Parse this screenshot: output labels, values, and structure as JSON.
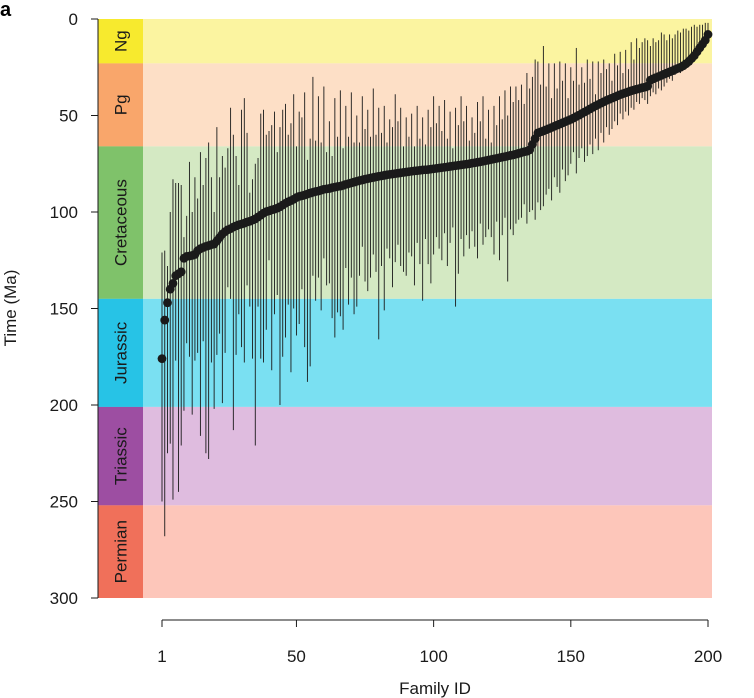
{
  "panel_label": "a",
  "chart_data": {
    "type": "scatter",
    "xlabel": "Family ID",
    "ylabel": "Time (Ma)",
    "xlim": [
      1,
      200
    ],
    "ylim": [
      0,
      300
    ],
    "y_reversed": true,
    "grid": false,
    "x_ticks": [
      1,
      50,
      100,
      150,
      200
    ],
    "y_ticks": [
      0,
      50,
      100,
      150,
      200,
      250,
      300
    ],
    "periods": [
      {
        "name": "Ng",
        "start": 0,
        "end": 23,
        "band_color": "#fbf4a0",
        "label_color": "#f7ea2e"
      },
      {
        "name": "Pg",
        "start": 23,
        "end": 66,
        "band_color": "#fddfc6",
        "label_color": "#f9a66b"
      },
      {
        "name": "Cretaceous",
        "start": 66,
        "end": 145,
        "band_color": "#d4e9c3",
        "label_color": "#7fc26a"
      },
      {
        "name": "Jurassic",
        "start": 145,
        "end": 201,
        "band_color": "#7ae0f2",
        "label_color": "#27c3e6"
      },
      {
        "name": "Triassic",
        "start": 201,
        "end": 252,
        "band_color": "#dfbcdf",
        "label_color": "#9d4ea2"
      },
      {
        "name": "Permian",
        "start": 252,
        "end": 300,
        "band_color": "#fdc6ba",
        "label_color": "#f0705a"
      }
    ],
    "series": [
      {
        "marker": "filled-circle",
        "color": "#1a1a1a",
        "x": [
          1,
          2,
          3,
          4,
          5,
          6,
          7,
          8,
          9,
          10,
          11,
          12,
          13,
          14,
          15,
          16,
          17,
          18,
          19,
          20,
          21,
          22,
          23,
          24,
          25,
          26,
          27,
          28,
          29,
          30,
          31,
          32,
          33,
          34,
          35,
          36,
          37,
          38,
          39,
          40,
          41,
          42,
          43,
          44,
          45,
          46,
          47,
          48,
          49,
          50,
          51,
          52,
          53,
          54,
          55,
          56,
          57,
          58,
          59,
          60,
          61,
          62,
          63,
          64,
          65,
          66,
          67,
          68,
          69,
          70,
          71,
          72,
          73,
          74,
          75,
          76,
          77,
          78,
          79,
          80,
          81,
          82,
          83,
          84,
          85,
          86,
          87,
          88,
          89,
          90,
          91,
          92,
          93,
          94,
          95,
          96,
          97,
          98,
          99,
          100,
          101,
          102,
          103,
          104,
          105,
          106,
          107,
          108,
          109,
          110,
          111,
          112,
          113,
          114,
          115,
          116,
          117,
          118,
          119,
          120,
          121,
          122,
          123,
          124,
          125,
          126,
          127,
          128,
          129,
          130,
          131,
          132,
          133,
          134,
          135,
          136,
          137,
          138,
          139,
          140,
          141,
          142,
          143,
          144,
          145,
          146,
          147,
          148,
          149,
          150,
          151,
          152,
          153,
          154,
          155,
          156,
          157,
          158,
          159,
          160,
          161,
          162,
          163,
          164,
          165,
          166,
          167,
          168,
          169,
          170,
          171,
          172,
          173,
          174,
          175,
          176,
          177,
          178,
          179,
          180,
          181,
          182,
          183,
          184,
          185,
          186,
          187,
          188,
          189,
          190,
          191,
          192,
          193,
          194,
          195,
          196,
          197,
          198,
          199,
          200
        ],
        "y": [
          176.0,
          156.0,
          147.0,
          140.0,
          137.0,
          133.0,
          132.0,
          131.0,
          124.0,
          123.0,
          122.8,
          122.5,
          122.0,
          120.0,
          119.0,
          118.4,
          117.8,
          117.4,
          116.9,
          116.6,
          115.0,
          113.2,
          111.4,
          110.2,
          109.2,
          108.6,
          107.8,
          107.2,
          106.6,
          106.2,
          105.8,
          105.2,
          104.8,
          104.2,
          103.6,
          102.6,
          101.6,
          100.6,
          99.8,
          99.4,
          98.9,
          98.5,
          98.0,
          97.3,
          96.4,
          95.5,
          94.7,
          94.1,
          93.4,
          92.5,
          91.9,
          91.6,
          91.2,
          90.7,
          90.2,
          89.8,
          89.4,
          89.1,
          88.7,
          88.2,
          88.0,
          87.8,
          87.4,
          87.1,
          86.8,
          86.6,
          86.2,
          85.7,
          85.3,
          84.9,
          84.5,
          84.1,
          83.7,
          83.4,
          83.0,
          82.7,
          82.4,
          82.1,
          81.8,
          81.5,
          81.3,
          81.0,
          80.7,
          80.5,
          80.3,
          80.1,
          79.9,
          79.7,
          79.5,
          79.3,
          79.1,
          78.9,
          78.7,
          78.6,
          78.4,
          78.2,
          78.1,
          78.0,
          77.8,
          77.6,
          77.4,
          77.2,
          77.0,
          76.8,
          76.6,
          76.4,
          76.2,
          76.0,
          75.8,
          75.6,
          75.4,
          75.2,
          75.0,
          74.7,
          74.5,
          74.2,
          74.0,
          73.7,
          73.4,
          73.1,
          72.8,
          72.5,
          72.2,
          71.9,
          71.6,
          71.3,
          71.0,
          70.7,
          70.4,
          70.0,
          69.6,
          69.2,
          68.8,
          68.5,
          67.8,
          65.0,
          62.0,
          59.0,
          58.5,
          58.0,
          57.4,
          56.8,
          56.2,
          55.6,
          55.0,
          54.4,
          53.8,
          53.2,
          52.6,
          52.0,
          51.3,
          50.5,
          49.8,
          49.0,
          48.2,
          47.4,
          46.6,
          45.8,
          45.0,
          44.3,
          43.6,
          42.9,
          42.2,
          41.6,
          41.0,
          40.4,
          39.8,
          39.2,
          38.7,
          38.2,
          37.7,
          37.2,
          36.8,
          36.4,
          36.0,
          35.6,
          35.3,
          34.8,
          31.7,
          31.0,
          30.4,
          29.8,
          29.2,
          28.6,
          28.0,
          27.4,
          26.8,
          26.2,
          25.6,
          25.0,
          24.2,
          23.2,
          22.0,
          20.5,
          19.0,
          17.0,
          15.0,
          13.0,
          11.0,
          8.0
        ],
        "err_low": [
          121,
          120,
          128,
          100,
          83,
          85,
          85,
          86,
          113,
          102,
          74,
          100,
          82,
          93,
          69,
          86,
          72,
          64,
          82,
          100,
          56,
          82,
          71,
          77,
          67,
          46,
          60,
          71,
          86,
          47,
          41,
          59,
          90,
          83,
          75,
          72,
          49,
          47,
          60,
          58,
          55,
          48,
          69,
          56,
          47,
          44,
          60,
          54,
          39,
          66,
          48,
          51,
          38,
          73,
          62,
          30,
          63,
          40,
          64,
          35,
          69,
          53,
          71,
          41,
          61,
          37,
          67,
          45,
          61,
          38,
          64,
          50,
          64,
          40,
          57,
          47,
          61,
          36,
          60,
          46,
          59,
          45,
          64,
          52,
          56,
          39,
          53,
          46,
          66,
          51,
          61,
          49,
          66,
          45,
          62,
          51,
          65,
          47,
          56,
          40,
          54,
          45,
          58,
          42,
          62,
          48,
          67,
          46,
          55,
          40,
          53,
          45,
          63,
          51,
          59,
          43,
          53,
          40,
          62,
          47,
          64,
          45,
          55,
          40,
          52,
          37,
          50,
          35,
          43,
          35,
          42,
          34,
          44,
          28,
          36,
          30,
          21,
          22,
          34,
          14,
          35,
          23,
          41,
          23,
          36,
          22,
          32,
          23,
          41,
          25,
          32,
          15,
          34,
          25,
          33,
          21,
          31,
          22,
          39,
          22,
          28,
          21,
          26,
          23,
          32,
          18,
          24,
          17,
          28,
          16,
          26,
          12,
          21,
          10,
          15,
          12,
          10,
          11,
          14,
          10,
          12,
          11,
          7,
          8,
          11,
          8,
          10,
          8,
          6,
          7,
          5,
          5,
          6,
          4,
          3,
          4,
          3,
          3,
          2,
          2
        ],
        "err_high": [
          250,
          268,
          225,
          220,
          249,
          177,
          245,
          221,
          203,
          168,
          175,
          205,
          177,
          173,
          216,
          167,
          225,
          228,
          178,
          202,
          174,
          163,
          199,
          173,
          139,
          145,
          213,
          174,
          153,
          170,
          178,
          138,
          149,
          176,
          221,
          149,
          176,
          178,
          161,
          125,
          182,
          153,
          143,
          200,
          175,
          165,
          148,
          183,
          150,
          164,
          158,
          140,
          170,
          188,
          180,
          133,
          146,
          134,
          151,
          124,
          138,
          137,
          155,
          165,
          152,
          154,
          161,
          129,
          148,
          134,
          153,
          149,
          133,
          118,
          136,
          141,
          134,
          122,
          131,
          166,
          128,
          151,
          119,
          124,
          139,
          126,
          117,
          128,
          131,
          133,
          121,
          123,
          138,
          116,
          127,
          146,
          114,
          127,
          137,
          122,
          113,
          119,
          125,
          111,
          128,
          116,
          108,
          149,
          132,
          114,
          123,
          112,
          119,
          110,
          118,
          124,
          106,
          117,
          113,
          109,
          113,
          122,
          105,
          125,
          112,
          103,
          136,
          109,
          112,
          106,
          104,
          103,
          96,
          106,
          100,
          99,
          104,
          95,
          99,
          97,
          91,
          88,
          94,
          82,
          87,
          90,
          78,
          84,
          81,
          75,
          69,
          80,
          72,
          67,
          74,
          71,
          65,
          70,
          62,
          68,
          59,
          64,
          56,
          60,
          57,
          53,
          55,
          49,
          52,
          48,
          50,
          46,
          47,
          43,
          44,
          41,
          42,
          44,
          40,
          38,
          39,
          36,
          37,
          35,
          33,
          31,
          32,
          29,
          27,
          28,
          25,
          24,
          22,
          23,
          20,
          19,
          17,
          15,
          14,
          12
        ]
      }
    ]
  }
}
